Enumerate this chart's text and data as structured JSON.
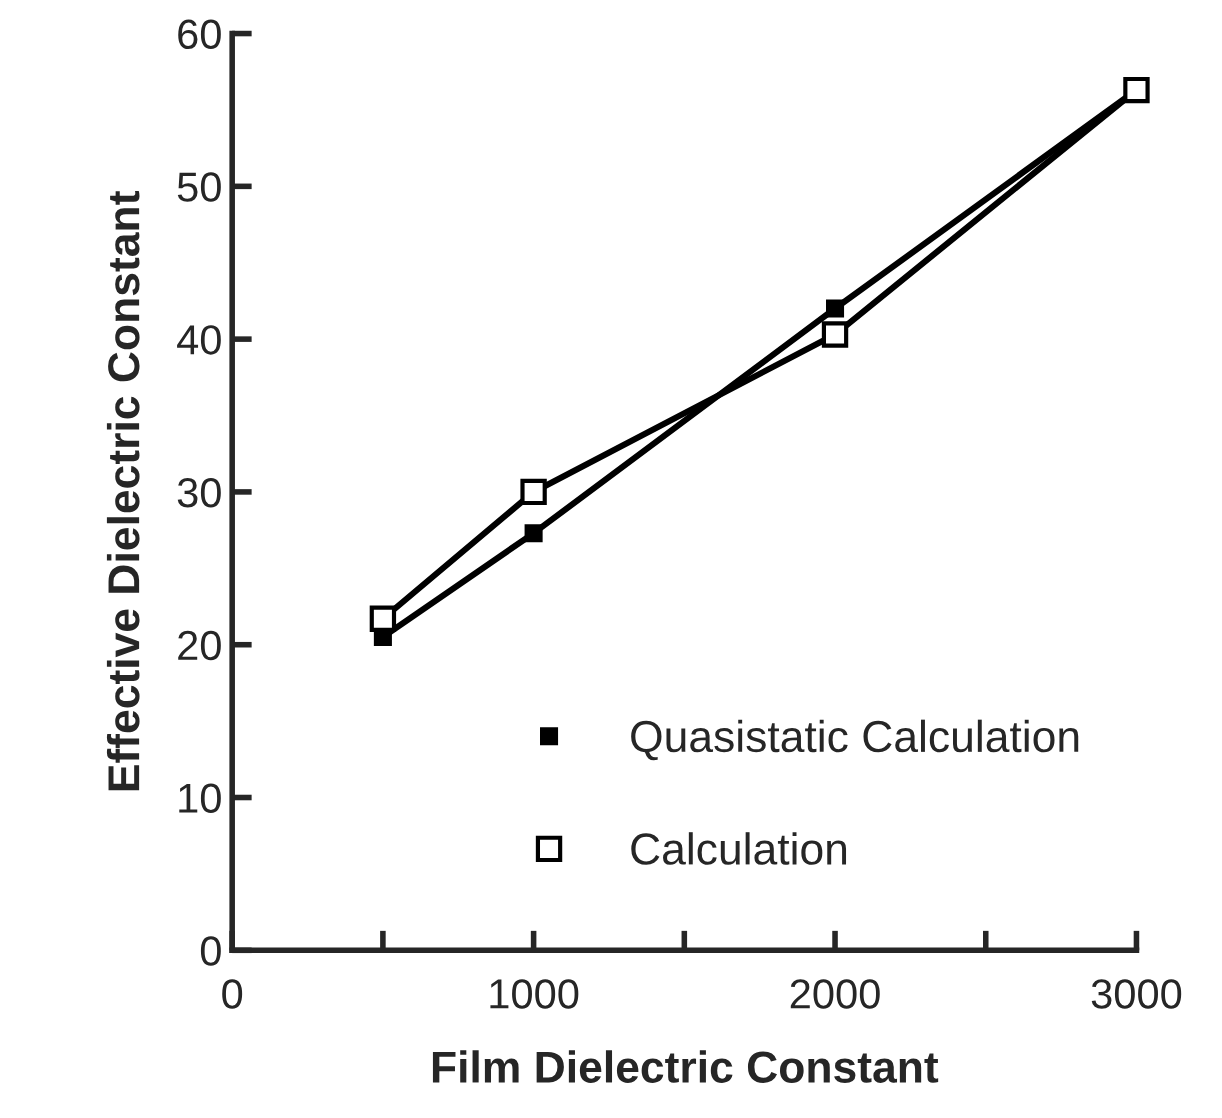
{
  "chart_data": {
    "type": "line",
    "xlabel": "Film Dielectric Constant",
    "ylabel": "Effective Dielectric Constant",
    "xlim": [
      0,
      3000
    ],
    "xticks": [
      0,
      {
        "value": 500,
        "label": null
      },
      1000,
      {
        "value": 1500,
        "label": null
      },
      2000,
      {
        "value": 2500,
        "label": null
      },
      3000
    ],
    "ylim": [
      0,
      60
    ],
    "yticks": [
      0,
      10,
      20,
      30,
      40,
      50,
      60
    ],
    "grid": false,
    "legend": "bottom",
    "series": [
      {
        "name": "Quasistatic Calculation",
        "color": "#000000",
        "marker": "square",
        "x": [
          500,
          1000,
          2000,
          3000
        ],
        "values": [
          20.5,
          27.3,
          42,
          56.3
        ]
      },
      {
        "name": "Calculation",
        "color": "#000000",
        "marker": "square",
        "x": [
          500,
          1000,
          2000,
          3000
        ],
        "values": [
          21.7,
          30,
          40.3,
          56.3
        ]
      }
    ]
  }
}
